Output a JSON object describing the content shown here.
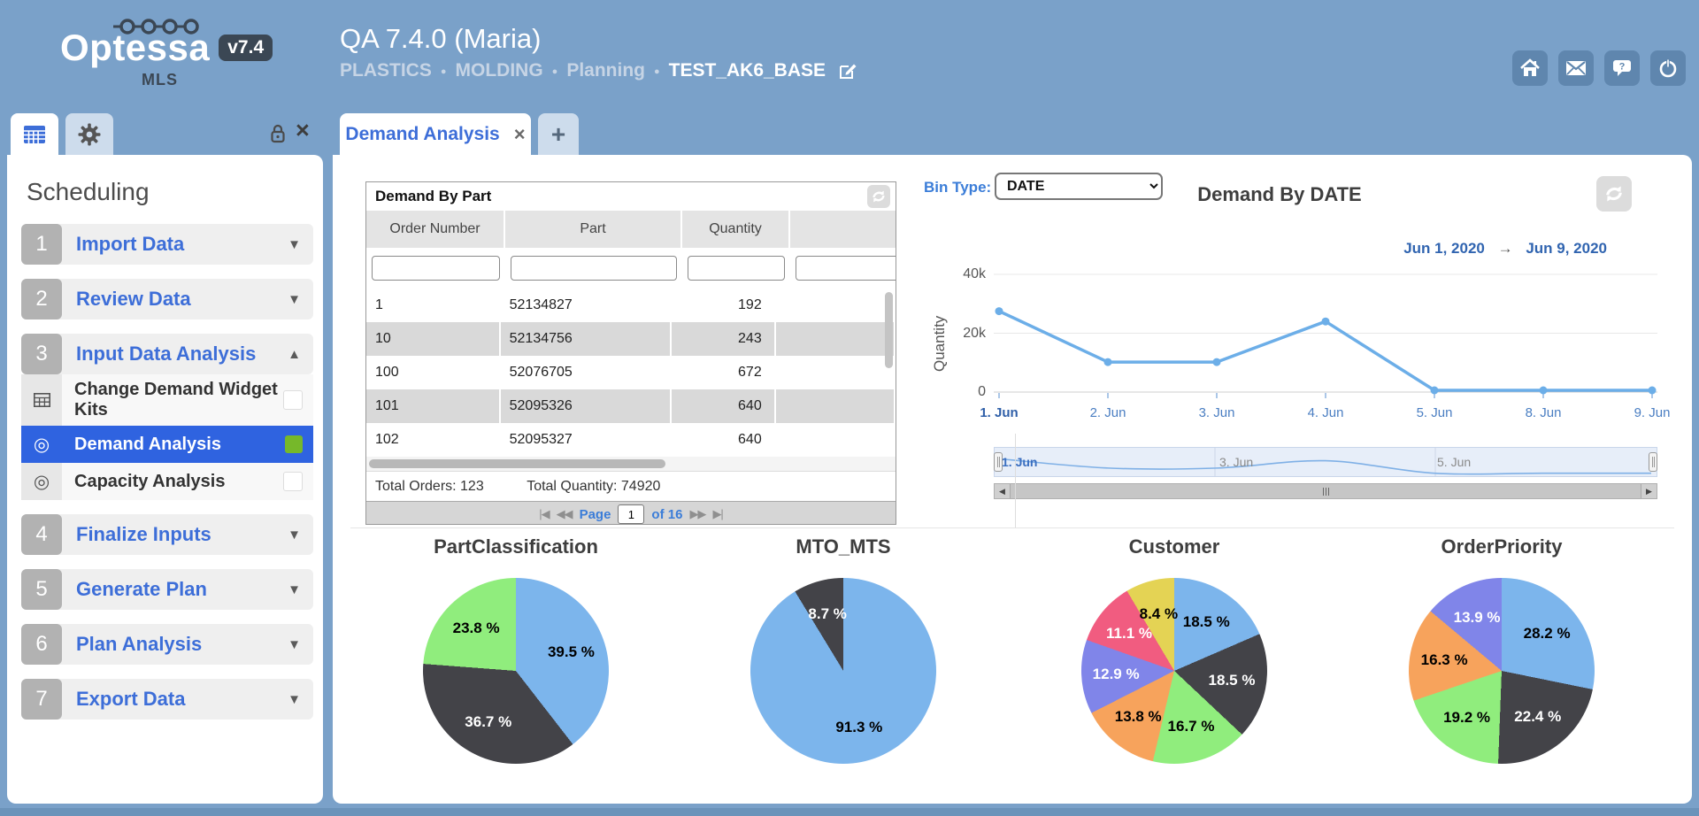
{
  "colors": {
    "background": "#7aa1c9",
    "accent": "#3d6ed8",
    "link_blue": "#3b7dd8",
    "selected_row": "#2f63e0",
    "selected_flag_green": "#76b82a",
    "palette": [
      "#7cb5ec",
      "#434348",
      "#90ed7d",
      "#f7a35c",
      "#8085e9",
      "#f15c80",
      "#e4d354"
    ]
  },
  "header": {
    "brand": "Optessa",
    "version_badge": "v7.4",
    "brand_sub": "MLS",
    "title": "QA 7.4.0 (Maria)",
    "breadcrumb": {
      "items": [
        "PLASTICS",
        "MOLDING",
        "Planning"
      ],
      "separator": "●",
      "current": "TEST_AK6_BASE"
    },
    "actions": [
      {
        "icon": "home"
      },
      {
        "icon": "mail"
      },
      {
        "icon": "help"
      },
      {
        "icon": "power"
      }
    ]
  },
  "sidebar": {
    "heading": "Scheduling",
    "steps": [
      {
        "num": "1",
        "label": "Import Data",
        "caret": "▼",
        "expanded": false
      },
      {
        "num": "2",
        "label": "Review Data",
        "caret": "▼",
        "expanded": false
      },
      {
        "num": "3",
        "label": "Input Data Analysis",
        "caret": "▲",
        "expanded": true,
        "children": [
          {
            "icon": "table",
            "label": "Change Demand Widget Kits",
            "selected": false,
            "flag": "checkbox"
          },
          {
            "icon": "target",
            "label": "Demand Analysis",
            "selected": true,
            "flag": "green"
          },
          {
            "icon": "target",
            "label": "Capacity Analysis",
            "selected": false,
            "flag": "checkbox"
          }
        ]
      },
      {
        "num": "4",
        "label": "Finalize Inputs",
        "caret": "▼",
        "expanded": false
      },
      {
        "num": "5",
        "label": "Generate Plan",
        "caret": "▼",
        "expanded": false
      },
      {
        "num": "6",
        "label": "Plan Analysis",
        "caret": "▼",
        "expanded": false
      },
      {
        "num": "7",
        "label": "Export Data",
        "caret": "▼",
        "expanded": false
      }
    ]
  },
  "main_tabs": {
    "active": "Demand Analysis",
    "close": "×",
    "add": "+"
  },
  "demand_table": {
    "title": "Demand By Part",
    "columns": [
      "Order Number",
      "Part",
      "Quantity"
    ],
    "rows": [
      [
        "1",
        "52134827",
        "192"
      ],
      [
        "10",
        "52134756",
        "243"
      ],
      [
        "100",
        "52076705",
        "672"
      ],
      [
        "101",
        "52095326",
        "640"
      ],
      [
        "102",
        "52095327",
        "640"
      ]
    ],
    "totals": {
      "orders": "Total Orders: 123",
      "quantity": "Total Quantity: 74920"
    },
    "pagination": {
      "first": "|◀",
      "prev": "◀◀",
      "page_label": "Page",
      "page_value": "1",
      "of_label": "of 16",
      "next": "▶▶",
      "last": "▶|"
    }
  },
  "chart_data": [
    {
      "type": "line",
      "title": "Demand By DATE",
      "bin_type_label": "Bin Type:",
      "bin_type_value": "DATE",
      "date_from": "Jun 1, 2020",
      "date_to": "Jun 9, 2020",
      "range_arrow": "→",
      "xlabel": "",
      "ylabel": "Quantity",
      "ylim": [
        0,
        40000
      ],
      "yticks": [
        {
          "v": 0,
          "label": "0"
        },
        {
          "v": 20000,
          "label": "20k"
        },
        {
          "v": 40000,
          "label": "40k"
        }
      ],
      "categories": [
        "1. Jun",
        "2. Jun",
        "3. Jun",
        "4. Jun",
        "5. Jun",
        "8. Jun",
        "9. Jun"
      ],
      "values": [
        27500,
        10200,
        10200,
        24000,
        600,
        600,
        600
      ],
      "navigator_labels": [
        "1. Jun",
        "3. Jun",
        "5. Jun"
      ],
      "line_color": "#6caee8",
      "grid": true,
      "legend": "none"
    },
    {
      "type": "pie",
      "title": "PartClassification",
      "slices": [
        {
          "label": "39.5 %",
          "value": 39.5,
          "color": "#7cb5ec",
          "text_color": "#000000"
        },
        {
          "label": "36.7 %",
          "value": 36.7,
          "color": "#434348",
          "text_color": "#ffffff"
        },
        {
          "label": "23.8 %",
          "value": 23.8,
          "color": "#90ed7d",
          "text_color": "#000000"
        }
      ]
    },
    {
      "type": "pie",
      "title": "MTO_MTS",
      "slices": [
        {
          "label": "91.3 %",
          "value": 91.3,
          "color": "#7cb5ec",
          "text_color": "#000000"
        },
        {
          "label": "8.7 %",
          "value": 8.7,
          "color": "#434348",
          "text_color": "#ffffff"
        }
      ]
    },
    {
      "type": "pie",
      "title": "Customer",
      "slices": [
        {
          "label": "18.5 %",
          "value": 18.5,
          "color": "#7cb5ec",
          "text_color": "#000000"
        },
        {
          "label": "18.5 %",
          "value": 18.5,
          "color": "#434348",
          "text_color": "#ffffff"
        },
        {
          "label": "16.7 %",
          "value": 16.7,
          "color": "#90ed7d",
          "text_color": "#000000"
        },
        {
          "label": "13.8 %",
          "value": 13.8,
          "color": "#f7a35c",
          "text_color": "#000000"
        },
        {
          "label": "12.9 %",
          "value": 12.9,
          "color": "#8085e9",
          "text_color": "#ffffff"
        },
        {
          "label": "11.1 %",
          "value": 11.1,
          "color": "#f15c80",
          "text_color": "#ffffff"
        },
        {
          "label": "8.4 %",
          "value": 8.4,
          "color": "#e4d354",
          "text_color": "#000000"
        }
      ]
    },
    {
      "type": "pie",
      "title": "OrderPriority",
      "slices": [
        {
          "label": "28.2 %",
          "value": 28.2,
          "color": "#7cb5ec",
          "text_color": "#000000"
        },
        {
          "label": "22.4 %",
          "value": 22.4,
          "color": "#434348",
          "text_color": "#ffffff"
        },
        {
          "label": "19.2 %",
          "value": 19.2,
          "color": "#90ed7d",
          "text_color": "#000000"
        },
        {
          "label": "16.3 %",
          "value": 16.3,
          "color": "#f7a35c",
          "text_color": "#000000"
        },
        {
          "label": "13.9 %",
          "value": 13.9,
          "color": "#8085e9",
          "text_color": "#ffffff"
        }
      ]
    }
  ]
}
